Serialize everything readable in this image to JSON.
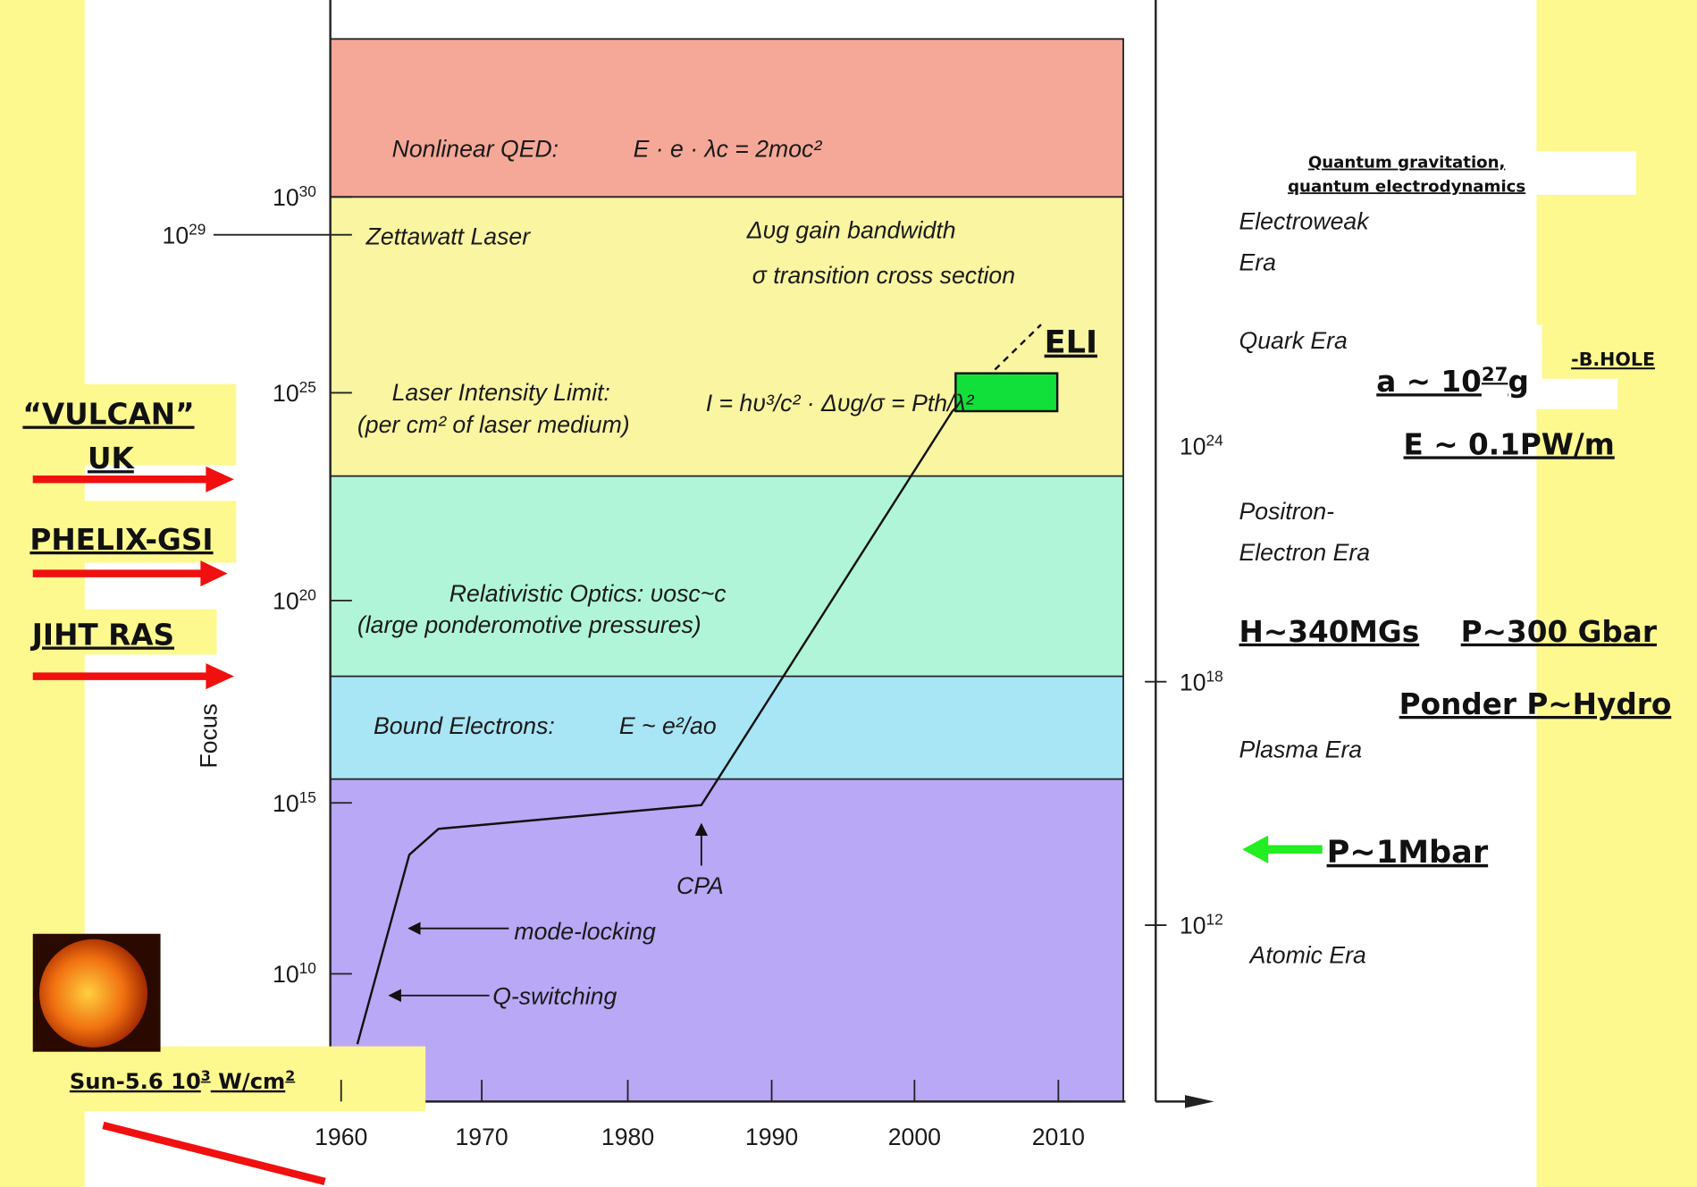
{
  "chart": {
    "y_axis_label": "Focus",
    "y_ticks": [
      {
        "base": "10",
        "exp": "30"
      },
      {
        "base": "10",
        "exp": "25"
      },
      {
        "base": "10",
        "exp": "20"
      },
      {
        "base": "10",
        "exp": "15"
      },
      {
        "base": "10",
        "exp": "10"
      }
    ],
    "x_ticks": [
      "1960",
      "1970",
      "1980",
      "1990",
      "2000",
      "2010"
    ],
    "zettawatt": {
      "value": {
        "base": "10",
        "exp": "29"
      },
      "label": "Zettawatt Laser"
    },
    "notes": [
      "Δυg  gain bandwidth",
      "σ   transition cross section"
    ],
    "bands": [
      {
        "label": "Nonlinear QED:",
        "formula": "E · e · λc = 2moc²"
      },
      {
        "label": "Laser Intensity Limit:",
        "sublabel": "(per cm² of laser medium)",
        "formula": "I = hυ³/c² · Δυg/σ = Pth/λ²"
      },
      {
        "label": "Relativistic Optics: υosc~c",
        "sublabel": "(large ponderomotive pressures)"
      },
      {
        "label": "Bound Electrons:",
        "formula": "E ~ e²/ao"
      }
    ],
    "annotations": [
      "CPA",
      "mode-locking",
      "Q-switching"
    ],
    "eli": "ELI"
  },
  "right_axis": {
    "ticks": [
      {
        "base": "10",
        "exp": "24"
      },
      {
        "base": "10",
        "exp": "18"
      },
      {
        "base": "10",
        "exp": "12"
      }
    ]
  },
  "eras": [
    [
      "Electroweak",
      "Era"
    ],
    [
      "Quark Era"
    ],
    [
      "Positron-",
      "Electron Era"
    ],
    [
      "Plasma Era"
    ],
    [
      "Atomic Era"
    ]
  ],
  "quantum_note": [
    "Quantum gravitation,",
    "quantum electrodynamics"
  ],
  "facilities": [
    [
      "“VULCAN”",
      "UK"
    ],
    [
      "PHELIX-GSI"
    ],
    [
      "JIHT RAS"
    ]
  ],
  "sun": {
    "text": "Sun-5.6 10",
    "exp": "3",
    "unit": " W/cm",
    "unit_exp": "2"
  },
  "parameters": {
    "acceleration": {
      "text": "a ~ 10",
      "exp": "27",
      "unit": "g"
    },
    "bhole": "-B.HOLE",
    "field": "E ~ 0.1PW/m",
    "magnetic": "H~340MGs",
    "pressure": "P~300 Gbar",
    "ponder": "Ponder P~Hydro",
    "mbar": "P~1Mbar"
  }
}
